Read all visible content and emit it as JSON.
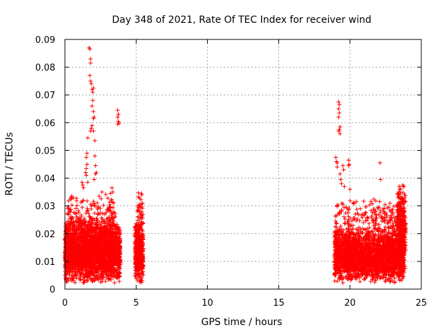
{
  "chart_data": {
    "type": "scatter",
    "title": "Day 348 of 2021, Rate Of TEC Index for receiver wind",
    "xlabel": "GPS time / hours",
    "ylabel": "ROTI / TECUs",
    "xlim": [
      0,
      25
    ],
    "ylim": [
      0,
      0.09
    ],
    "x_ticks": [
      "0",
      "5",
      "10",
      "15",
      "20",
      "25"
    ],
    "y_ticks": [
      "0",
      "0.01",
      "0.02",
      "0.03",
      "0.04",
      "0.05",
      "0.06",
      "0.07",
      "0.08",
      "0.09"
    ],
    "grid": true,
    "marker": "+",
    "series": [
      {
        "color": "#ff0000",
        "clusters": [
          {
            "x": [
              0.0,
              3.9
            ],
            "y_base": [
              0.002,
              0.025
            ],
            "count": 2600
          },
          {
            "x": [
              0.1,
              3.6
            ],
            "y_base": [
              0.015,
              0.035
            ],
            "count": 260
          },
          {
            "x": [
              4.9,
              5.5
            ],
            "y_base": [
              0.002,
              0.025
            ],
            "count": 420
          },
          {
            "x": [
              5.1,
              5.5
            ],
            "y_base": [
              0.02,
              0.035
            ],
            "count": 40
          },
          {
            "x": [
              18.9,
              23.8
            ],
            "y_base": [
              0.002,
              0.022
            ],
            "count": 2400
          },
          {
            "x": [
              18.9,
              23.8
            ],
            "y_base": [
              0.015,
              0.034
            ],
            "count": 280
          },
          {
            "x": [
              23.3,
              23.9
            ],
            "y_base": [
              0.006,
              0.038
            ],
            "count": 300
          }
        ],
        "points": [
          {
            "x": 1.7,
            "y": 0.087
          },
          {
            "x": 1.75,
            "y": 0.0865
          },
          {
            "x": 1.8,
            "y": 0.083
          },
          {
            "x": 1.8,
            "y": 0.0815
          },
          {
            "x": 1.75,
            "y": 0.077
          },
          {
            "x": 1.8,
            "y": 0.075
          },
          {
            "x": 1.85,
            "y": 0.074
          },
          {
            "x": 1.9,
            "y": 0.072
          },
          {
            "x": 1.95,
            "y": 0.071
          },
          {
            "x": 2.0,
            "y": 0.0725
          },
          {
            "x": 1.95,
            "y": 0.068
          },
          {
            "x": 1.9,
            "y": 0.066
          },
          {
            "x": 2.0,
            "y": 0.064
          },
          {
            "x": 2.05,
            "y": 0.062
          },
          {
            "x": 2.0,
            "y": 0.0615
          },
          {
            "x": 1.9,
            "y": 0.059
          },
          {
            "x": 1.85,
            "y": 0.058
          },
          {
            "x": 2.0,
            "y": 0.057
          },
          {
            "x": 1.8,
            "y": 0.057
          },
          {
            "x": 2.1,
            "y": 0.0535
          },
          {
            "x": 1.6,
            "y": 0.0545
          },
          {
            "x": 1.55,
            "y": 0.049
          },
          {
            "x": 1.5,
            "y": 0.0475
          },
          {
            "x": 1.55,
            "y": 0.045
          },
          {
            "x": 1.5,
            "y": 0.0435
          },
          {
            "x": 1.45,
            "y": 0.042
          },
          {
            "x": 1.5,
            "y": 0.041
          },
          {
            "x": 2.1,
            "y": 0.048
          },
          {
            "x": 2.15,
            "y": 0.0445
          },
          {
            "x": 2.2,
            "y": 0.042
          },
          {
            "x": 2.15,
            "y": 0.0415
          },
          {
            "x": 2.05,
            "y": 0.0395
          },
          {
            "x": 1.2,
            "y": 0.0385
          },
          {
            "x": 1.25,
            "y": 0.0375
          },
          {
            "x": 1.3,
            "y": 0.0365
          },
          {
            "x": 1.6,
            "y": 0.0385
          },
          {
            "x": 3.7,
            "y": 0.0645
          },
          {
            "x": 3.75,
            "y": 0.063
          },
          {
            "x": 3.7,
            "y": 0.062
          },
          {
            "x": 3.75,
            "y": 0.0605
          },
          {
            "x": 3.7,
            "y": 0.0595
          },
          {
            "x": 3.8,
            "y": 0.0598
          },
          {
            "x": 3.3,
            "y": 0.0365
          },
          {
            "x": 3.35,
            "y": 0.035
          },
          {
            "x": 3.2,
            "y": 0.0345
          },
          {
            "x": 2.6,
            "y": 0.035
          },
          {
            "x": 2.4,
            "y": 0.0335
          },
          {
            "x": 5.35,
            "y": 0.0345
          },
          {
            "x": 5.4,
            "y": 0.034
          },
          {
            "x": 19.2,
            "y": 0.0675
          },
          {
            "x": 19.25,
            "y": 0.0665
          },
          {
            "x": 19.2,
            "y": 0.065
          },
          {
            "x": 19.25,
            "y": 0.0635
          },
          {
            "x": 19.2,
            "y": 0.062
          },
          {
            "x": 19.3,
            "y": 0.0585
          },
          {
            "x": 19.25,
            "y": 0.0575
          },
          {
            "x": 19.2,
            "y": 0.057
          },
          {
            "x": 19.3,
            "y": 0.056
          },
          {
            "x": 19.0,
            "y": 0.0475
          },
          {
            "x": 19.05,
            "y": 0.046
          },
          {
            "x": 19.1,
            "y": 0.0455
          },
          {
            "x": 19.1,
            "y": 0.044
          },
          {
            "x": 19.5,
            "y": 0.0445
          },
          {
            "x": 19.55,
            "y": 0.043
          },
          {
            "x": 19.3,
            "y": 0.0415
          },
          {
            "x": 19.9,
            "y": 0.0465
          },
          {
            "x": 19.95,
            "y": 0.045
          },
          {
            "x": 19.9,
            "y": 0.0445
          },
          {
            "x": 19.35,
            "y": 0.0395
          },
          {
            "x": 19.4,
            "y": 0.038
          },
          {
            "x": 19.6,
            "y": 0.037
          },
          {
            "x": 22.1,
            "y": 0.0455
          },
          {
            "x": 22.15,
            "y": 0.0395
          },
          {
            "x": 23.7,
            "y": 0.0375
          },
          {
            "x": 23.75,
            "y": 0.037
          },
          {
            "x": 20.0,
            "y": 0.036
          }
        ]
      }
    ]
  }
}
